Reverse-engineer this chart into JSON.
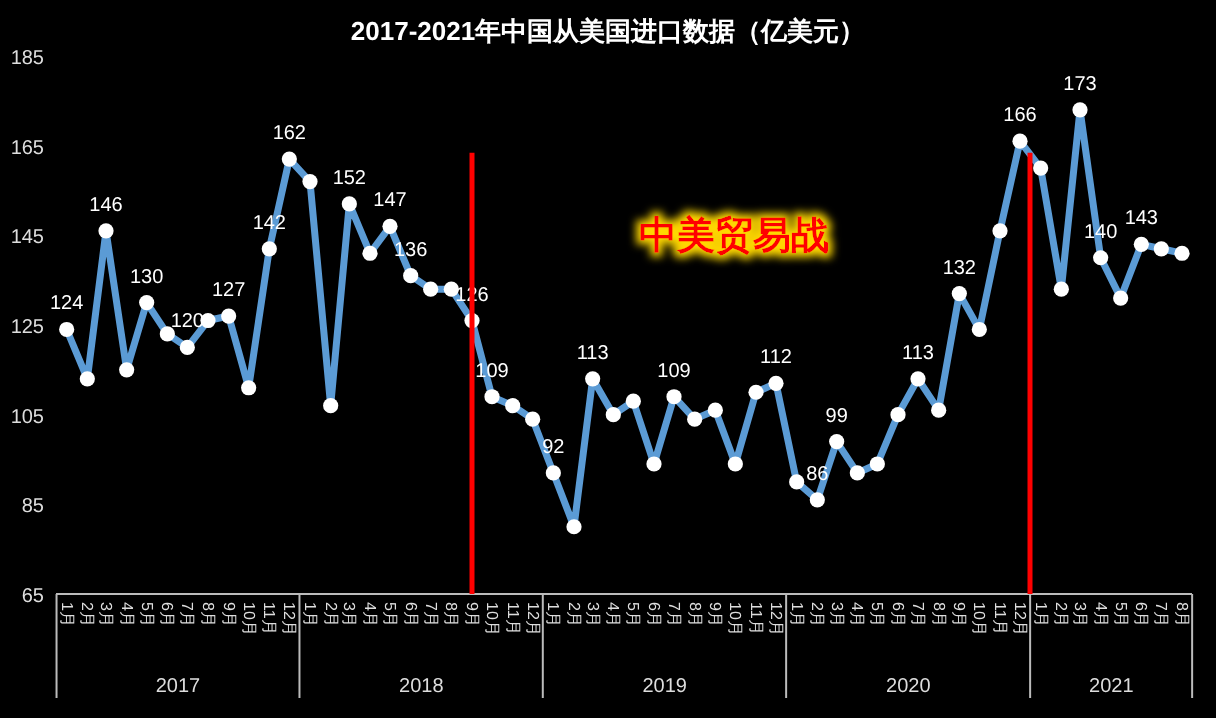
{
  "chart_data": {
    "type": "line",
    "title": "2017-2021年中国从美国进口数据（亿美元）",
    "x": [
      "2017-01",
      "2017-02",
      "2017-03",
      "2017-04",
      "2017-05",
      "2017-06",
      "2017-07",
      "2017-08",
      "2017-09",
      "2017-10",
      "2017-11",
      "2017-12",
      "2018-01",
      "2018-02",
      "2018-03",
      "2018-04",
      "2018-05",
      "2018-06",
      "2018-07",
      "2018-08",
      "2018-09",
      "2018-10",
      "2018-11",
      "2018-12",
      "2019-01",
      "2019-02",
      "2019-03",
      "2019-04",
      "2019-05",
      "2019-06",
      "2019-07",
      "2019-08",
      "2019-09",
      "2019-10",
      "2019-11",
      "2019-12",
      "2020-01",
      "2020-02",
      "2020-03",
      "2020-04",
      "2020-05",
      "2020-06",
      "2020-07",
      "2020-08",
      "2020-09",
      "2020-10",
      "2020-11",
      "2020-12",
      "2021-01",
      "2021-02",
      "2021-03",
      "2021-04",
      "2021-05",
      "2021-06",
      "2021-07",
      "2021-08"
    ],
    "series": [
      {
        "color": "#5b9bd5",
        "values": [
          124,
          113,
          146,
          115,
          130,
          123,
          120,
          126,
          127,
          111,
          142,
          162,
          157,
          107,
          152,
          141,
          147,
          136,
          133,
          133,
          126,
          109,
          107,
          104,
          92,
          80,
          113,
          105,
          108,
          94,
          109,
          104,
          106,
          94,
          110,
          112,
          90,
          86,
          99,
          92,
          94,
          105,
          113,
          106,
          132,
          124,
          146,
          166,
          160,
          133,
          173,
          140,
          131,
          143,
          142,
          141
        ],
        "value_labels": [
          "124",
          null,
          "146",
          null,
          "130",
          null,
          "120",
          null,
          "127",
          null,
          "142",
          "162",
          null,
          null,
          "152",
          null,
          "147",
          "136",
          null,
          null,
          "126",
          "109",
          null,
          null,
          "92",
          null,
          "113",
          null,
          null,
          null,
          "109",
          null,
          null,
          null,
          null,
          "112",
          null,
          "86",
          "99",
          null,
          null,
          null,
          "113",
          null,
          "132",
          null,
          null,
          "166",
          null,
          null,
          "173",
          "140",
          null,
          "143",
          null,
          null
        ]
      }
    ],
    "xlim": [
      "2016-12-16",
      "2021-08-16"
    ],
    "xticks": [
      {
        "value": "2017-01",
        "label": "1月"
      },
      {
        "value": "2017-02",
        "label": "2月"
      },
      {
        "value": "2017-03",
        "label": "3月"
      },
      {
        "value": "2017-04",
        "label": "4月"
      },
      {
        "value": "2017-05",
        "label": "5月"
      },
      {
        "value": "2017-06",
        "label": "6月"
      },
      {
        "value": "2017-07",
        "label": "7月"
      },
      {
        "value": "2017-08",
        "label": "8月"
      },
      {
        "value": "2017-09",
        "label": "9月"
      },
      {
        "value": "2017-10",
        "label": "10月"
      },
      {
        "value": "2017-11",
        "label": "11月"
      },
      {
        "value": "2017-12",
        "label": "12月"
      },
      {
        "value": "2018-01",
        "label": "1月"
      },
      {
        "value": "2018-02",
        "label": "2月"
      },
      {
        "value": "2018-03",
        "label": "3月"
      },
      {
        "value": "2018-04",
        "label": "4月"
      },
      {
        "value": "2018-05",
        "label": "5月"
      },
      {
        "value": "2018-06",
        "label": "6月"
      },
      {
        "value": "2018-07",
        "label": "7月"
      },
      {
        "value": "2018-08",
        "label": "8月"
      },
      {
        "value": "2018-09",
        "label": "9月"
      },
      {
        "value": "2018-10",
        "label": "10月"
      },
      {
        "value": "2018-11",
        "label": "11月"
      },
      {
        "value": "2018-12",
        "label": "12月"
      },
      {
        "value": "2019-01",
        "label": "1月"
      },
      {
        "value": "2019-02",
        "label": "2月"
      },
      {
        "value": "2019-03",
        "label": "3月"
      },
      {
        "value": "2019-04",
        "label": "4月"
      },
      {
        "value": "2019-05",
        "label": "5月"
      },
      {
        "value": "2019-06",
        "label": "6月"
      },
      {
        "value": "2019-07",
        "label": "7月"
      },
      {
        "value": "2019-08",
        "label": "8月"
      },
      {
        "value": "2019-09",
        "label": "9月"
      },
      {
        "value": "2019-10",
        "label": "10月"
      },
      {
        "value": "2019-11",
        "label": "11月"
      },
      {
        "value": "2019-12",
        "label": "12月"
      },
      {
        "value": "2020-01",
        "label": "1月"
      },
      {
        "value": "2020-02",
        "label": "2月"
      },
      {
        "value": "2020-03",
        "label": "3月"
      },
      {
        "value": "2020-04",
        "label": "4月"
      },
      {
        "value": "2020-05",
        "label": "5月"
      },
      {
        "value": "2020-06",
        "label": "6月"
      },
      {
        "value": "2020-07",
        "label": "7月"
      },
      {
        "value": "2020-08",
        "label": "8月"
      },
      {
        "value": "2020-09",
        "label": "9月"
      },
      {
        "value": "2020-10",
        "label": "10月"
      },
      {
        "value": "2020-11",
        "label": "11月"
      },
      {
        "value": "2020-12",
        "label": "12月"
      },
      {
        "value": "2021-01",
        "label": "1月"
      },
      {
        "value": "2021-02",
        "label": "2月"
      },
      {
        "value": "2021-03",
        "label": "3月"
      },
      {
        "value": "2021-04",
        "label": "4月"
      },
      {
        "value": "2021-05",
        "label": "5月"
      },
      {
        "value": "2021-06",
        "label": "6月"
      },
      {
        "value": "2021-07",
        "label": "7月"
      },
      {
        "value": "2021-08",
        "label": "8月"
      }
    ],
    "ylim": [
      65,
      185
    ],
    "yticks": [
      65,
      85,
      105,
      125,
      145,
      165,
      185
    ],
    "ref_lines": [
      {
        "axis": "x",
        "value": "2018-09",
        "color": "#ff0000"
      },
      {
        "axis": "x",
        "value": "2020-12-16",
        "color": "#ff0000"
      }
    ],
    "annotations": [
      "中美贸易战",
      "2017",
      "2018",
      "2019",
      "2020",
      "2021"
    ],
    "marker": "circle",
    "line_style": "solid",
    "grid": false
  }
}
